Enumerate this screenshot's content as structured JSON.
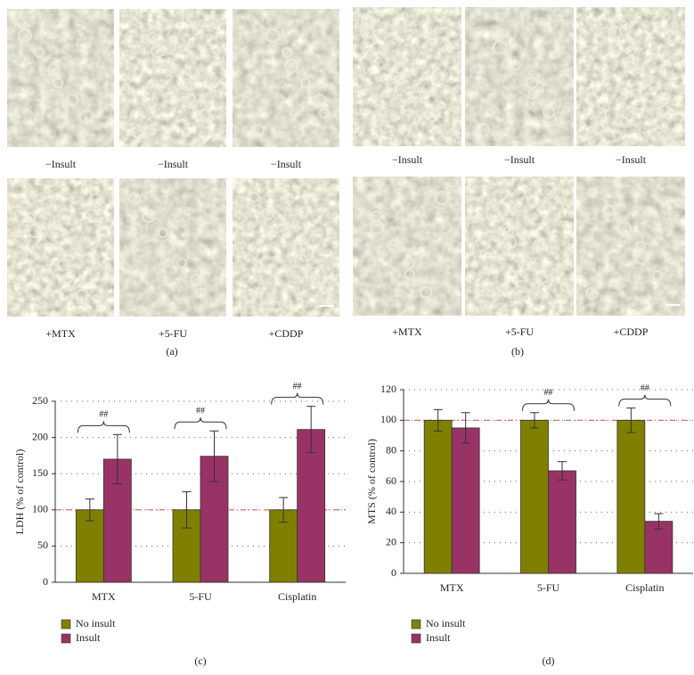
{
  "figure": {
    "panel_a": {
      "label": "(a)",
      "top_captions": [
        "−Insult",
        "−Insult",
        "−Insult"
      ],
      "bottom_captions": [
        "+MTX",
        "+5-FU",
        "+CDDP"
      ]
    },
    "panel_b": {
      "label": "(b)",
      "top_captions": [
        "−Insult",
        "−Insult",
        "−Insult"
      ],
      "bottom_captions": [
        "+MTX",
        "+5-FU",
        "+CDDP"
      ]
    }
  },
  "chart_data": [
    {
      "type": "bar",
      "label": "(c)",
      "y_label": "LDH (% of control)",
      "categories": [
        "MTX",
        "5-FU",
        "Cisplatin"
      ],
      "series": [
        {
          "name": "No insult",
          "color": "#808000",
          "values": [
            100,
            100,
            100
          ],
          "errors": [
            15,
            25,
            17
          ]
        },
        {
          "name": "Insult",
          "color": "#993366",
          "values": [
            170,
            174,
            211
          ],
          "errors": [
            34,
            35,
            32
          ]
        }
      ],
      "ylim": [
        0,
        250
      ],
      "yticks": [
        0,
        50,
        100,
        150,
        200,
        250
      ],
      "grid": true,
      "reference_line": 100,
      "reference_color": "#e06060",
      "significance": [
        "##",
        "##",
        "##"
      ],
      "legend": "bottom-left"
    },
    {
      "type": "bar",
      "label": "(d)",
      "y_label": "MTS (% of control)",
      "categories": [
        "MTX",
        "5-FU",
        "Cisplatin"
      ],
      "series": [
        {
          "name": "No insult",
          "color": "#808000",
          "values": [
            100,
            100,
            100
          ],
          "errors": [
            7,
            5,
            8
          ]
        },
        {
          "name": "Insult",
          "color": "#993366",
          "values": [
            95,
            67,
            34
          ],
          "errors": [
            10,
            6,
            5
          ]
        }
      ],
      "ylim": [
        0,
        120
      ],
      "yticks": [
        0,
        20,
        40,
        60,
        80,
        100,
        120
      ],
      "grid": true,
      "reference_line": 100,
      "reference_color": "#e06060",
      "significance": [
        null,
        "##",
        "##"
      ],
      "legend": "bottom-left"
    }
  ]
}
